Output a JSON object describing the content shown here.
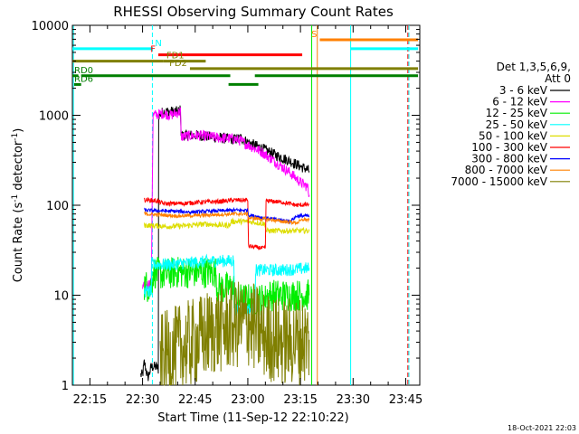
{
  "chart_data": {
    "type": "line",
    "title": "RHESSI Observing Summary Count Rates",
    "xlabel": "Start Time (11-Sep-12 22:10:22)",
    "ylabel_html": [
      "Count Rate (s",
      "-1",
      " detector",
      "-1",
      ")"
    ],
    "yscale": "log",
    "ylim": [
      1,
      10000
    ],
    "xlim_minutes": [
      0,
      99
    ],
    "x_ticks": [
      {
        "t": 5,
        "label": "22:15"
      },
      {
        "t": 20,
        "label": "22:30"
      },
      {
        "t": 35,
        "label": "22:45"
      },
      {
        "t": 50,
        "label": "23:00"
      },
      {
        "t": 65,
        "label": "23:15"
      },
      {
        "t": 80,
        "label": "23:30"
      },
      {
        "t": 95,
        "label": "23:45"
      }
    ],
    "y_ticks": [
      {
        "v": 1,
        "label": "1"
      },
      {
        "v": 10,
        "label": "10"
      },
      {
        "v": 100,
        "label": "100"
      },
      {
        "v": 1000,
        "label": "1000"
      },
      {
        "v": 10000,
        "label": "10000"
      }
    ],
    "legend": {
      "position": "right",
      "header": [
        "Det 1,3,5,6,9,",
        "Att 0"
      ]
    },
    "series": [
      {
        "name": "3 - 6 keV",
        "color": "#000000",
        "noise": 0.06,
        "points": [
          [
            19.5,
            1.3
          ],
          [
            20,
            1.3
          ],
          [
            20.5,
            1.8
          ],
          [
            21.5,
            1.2
          ],
          [
            22.5,
            1.6
          ],
          [
            24,
            1.6
          ],
          [
            24.5,
            1.5
          ],
          [
            24.6,
            1000
          ],
          [
            26,
            1100
          ],
          [
            28,
            1100
          ],
          [
            30,
            1100
          ],
          [
            30.8,
            1150
          ],
          [
            31,
            600
          ],
          [
            36,
            600
          ],
          [
            42,
            560
          ],
          [
            46,
            540
          ],
          [
            48,
            560
          ],
          [
            50,
            500
          ],
          [
            54,
            430
          ],
          [
            58,
            360
          ],
          [
            62,
            310
          ],
          [
            65,
            270
          ],
          [
            67,
            250
          ],
          [
            67.5,
            240
          ]
        ]
      },
      {
        "name": "6 - 12 keV",
        "color": "#ff00ff",
        "noise": 0.06,
        "points": [
          [
            20,
            12
          ],
          [
            22.5,
            14
          ],
          [
            23,
            1000
          ],
          [
            26,
            1050
          ],
          [
            28,
            1000
          ],
          [
            30.8,
            1100
          ],
          [
            31,
            580
          ],
          [
            36,
            600
          ],
          [
            42,
            560
          ],
          [
            46,
            550
          ],
          [
            48,
            520
          ],
          [
            50,
            470
          ],
          [
            54,
            390
          ],
          [
            58,
            300
          ],
          [
            62,
            230
          ],
          [
            65,
            180
          ],
          [
            67,
            160
          ],
          [
            67.5,
            130
          ]
        ]
      },
      {
        "name": "12 - 25 keV",
        "color": "#00ee00",
        "noise": 0.18,
        "points": [
          [
            20.5,
            13
          ],
          [
            22.5,
            12
          ],
          [
            23,
            18
          ],
          [
            26,
            17
          ],
          [
            30,
            18
          ],
          [
            34,
            18
          ],
          [
            38,
            18
          ],
          [
            41,
            18
          ],
          [
            41.2,
            12
          ],
          [
            46,
            12
          ],
          [
            46.2,
            9
          ],
          [
            50,
            9
          ],
          [
            54,
            9
          ],
          [
            55,
            9
          ],
          [
            55.2,
            10
          ],
          [
            60,
            10
          ],
          [
            64,
            10
          ],
          [
            67.5,
            10
          ]
        ]
      },
      {
        "name": "25 - 50 keV",
        "color": "#00ffff",
        "noise": 0.07,
        "points": [
          [
            20.5,
            11
          ],
          [
            22.5,
            11
          ],
          [
            22.6,
            22
          ],
          [
            28,
            22
          ],
          [
            34,
            23
          ],
          [
            40,
            24
          ],
          [
            45.5,
            24
          ],
          [
            46,
            25
          ],
          [
            46.2,
            7
          ],
          [
            50,
            7
          ],
          [
            52,
            7
          ],
          [
            52.2,
            19
          ],
          [
            56,
            19
          ],
          [
            60,
            19
          ],
          [
            67.5,
            20
          ]
        ]
      },
      {
        "name": "50 - 100 keV",
        "color": "#dddd00",
        "noise": 0.03,
        "points": [
          [
            20.5,
            60
          ],
          [
            28,
            58
          ],
          [
            34,
            60
          ],
          [
            38,
            62
          ],
          [
            42,
            60
          ],
          [
            45,
            60
          ],
          [
            45.2,
            66
          ],
          [
            50,
            66
          ],
          [
            55,
            62
          ],
          [
            55.2,
            52
          ],
          [
            60,
            52
          ],
          [
            67.5,
            52
          ]
        ]
      },
      {
        "name": "100 - 300 keV",
        "color": "#ff0000",
        "noise": 0.025,
        "points": [
          [
            20.5,
            115
          ],
          [
            24,
            112
          ],
          [
            26,
            104
          ],
          [
            32,
            105
          ],
          [
            36,
            108
          ],
          [
            42,
            110
          ],
          [
            46,
            114
          ],
          [
            50,
            114
          ],
          [
            50.2,
            35
          ],
          [
            55,
            33
          ],
          [
            55.2,
            112
          ],
          [
            60,
            108
          ],
          [
            64,
            100
          ],
          [
            67.5,
            102
          ]
        ]
      },
      {
        "name": "300 - 800 keV",
        "color": "#0000ff",
        "noise": 0.02,
        "points": [
          [
            20.5,
            88
          ],
          [
            28,
            86
          ],
          [
            34,
            84
          ],
          [
            40,
            86
          ],
          [
            46,
            88
          ],
          [
            50,
            88
          ],
          [
            50.2,
            78
          ],
          [
            55,
            72
          ],
          [
            60,
            68
          ],
          [
            62,
            66
          ],
          [
            64,
            76
          ],
          [
            67.5,
            76
          ]
        ]
      },
      {
        "name": "800 - 7000 keV",
        "color": "#ff8000",
        "noise": 0.02,
        "points": [
          [
            20.5,
            80
          ],
          [
            26,
            78
          ],
          [
            30,
            76
          ],
          [
            36,
            77
          ],
          [
            42,
            79
          ],
          [
            46,
            80
          ],
          [
            50,
            80
          ],
          [
            50.2,
            72
          ],
          [
            55,
            70
          ],
          [
            60,
            66
          ],
          [
            64,
            64
          ],
          [
            66,
            70
          ],
          [
            67.5,
            68
          ]
        ]
      },
      {
        "name": "7000 - 15000 keV",
        "color": "#7f7f00",
        "noise": 0.5,
        "points": [
          [
            25,
            2
          ],
          [
            30,
            2.5
          ],
          [
            35,
            3
          ],
          [
            40,
            4
          ],
          [
            45,
            4.5
          ],
          [
            50,
            5
          ],
          [
            55,
            3.5
          ],
          [
            60,
            3
          ],
          [
            67.5,
            3.2
          ]
        ]
      }
    ],
    "vertical_lines": [
      {
        "t": 0.3,
        "color": "#00ffff",
        "dashed": false
      },
      {
        "t": 22.8,
        "color": "#00ffff",
        "dashed": true
      },
      {
        "t": 68.2,
        "color": "#00ee00",
        "dashed": false
      },
      {
        "t": 69.8,
        "color": "#ff8000",
        "dashed": false
      },
      {
        "t": 79.3,
        "color": "#00ffff",
        "dashed": false
      },
      {
        "t": 95.6,
        "color": "#ff0000",
        "dashed": true
      },
      {
        "t": 95.9,
        "color": "#00ffff",
        "dashed": true
      }
    ],
    "status_bars": [
      {
        "label": "N",
        "color": "#00ffff",
        "label_at": "end",
        "segments": [
          [
            0,
            22.8
          ],
          [
            79.3,
            98.5
          ]
        ],
        "y": 5500
      },
      {
        "label": "F",
        "color": "#ff0000",
        "label_at": "start",
        "segments": [
          [
            24.5,
            65.5
          ]
        ],
        "y": 4700
      },
      {
        "label": "FD1",
        "color": "#7f7f00",
        "label_at": "end",
        "segments": [
          [
            0,
            26
          ],
          [
            26,
            38
          ]
        ],
        "y": 4000
      },
      {
        "label": "S",
        "color": "#ff8000",
        "label_at": "start",
        "segments": [
          [
            70.5,
            98.5
          ]
        ],
        "y": 6900
      },
      {
        "label": "FD2",
        "color": "#7f7f00",
        "label_at": "start",
        "segments": [
          [
            33.5,
            98.5
          ]
        ],
        "y": 3300
      },
      {
        "label": "RD0",
        "color": "#007f00",
        "label_at": "start",
        "segments": [
          [
            0,
            1.7
          ],
          [
            2.5,
            45
          ],
          [
            52,
            98.5
          ]
        ],
        "y": 2750
      },
      {
        "label": "RD6",
        "color": "#007f00",
        "label_at": "start",
        "segments": [
          [
            0.5,
            2.5
          ],
          [
            44.5,
            53
          ]
        ],
        "y": 2200
      }
    ]
  },
  "footer_timestamp": "18-Oct-2021 22:03"
}
